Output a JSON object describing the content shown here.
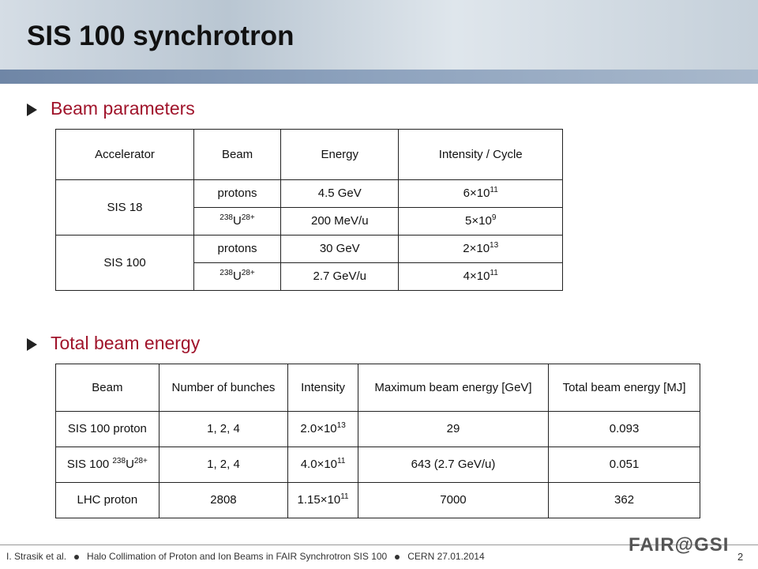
{
  "header": {
    "title": "SIS 100 synchrotron"
  },
  "sections": [
    {
      "heading": "Beam parameters",
      "table": {
        "header": [
          "Accelerator",
          "Beam",
          "Energy",
          "Intensity / Cycle"
        ],
        "groups": [
          {
            "accelerator": "SIS 18",
            "rows": [
              [
                "protons",
                "4.5 GeV",
                [
                  {
                    "text": "6×10"
                  },
                  {
                    "text": "11",
                    "sup": true
                  }
                ]
              ],
              [
                [
                  {
                    "text": "238",
                    "sup": true
                  },
                  {
                    "text": "U"
                  },
                  {
                    "text": "28+",
                    "sup": true
                  }
                ],
                "200 MeV/u",
                [
                  {
                    "text": "5×10"
                  },
                  {
                    "text": "9",
                    "sup": true
                  }
                ]
              ]
            ]
          },
          {
            "accelerator": "SIS 100",
            "rows": [
              [
                "protons",
                "30 GeV",
                [
                  {
                    "text": "2×10"
                  },
                  {
                    "text": "13",
                    "sup": true
                  }
                ]
              ],
              [
                [
                  {
                    "text": "238",
                    "sup": true
                  },
                  {
                    "text": "U"
                  },
                  {
                    "text": "28+",
                    "sup": true
                  }
                ],
                "2.7 GeV/u",
                [
                  {
                    "text": "4×10"
                  },
                  {
                    "text": "11",
                    "sup": true
                  }
                ]
              ]
            ]
          }
        ]
      }
    },
    {
      "heading": "Total beam energy",
      "table": {
        "header": [
          "Beam",
          "Number of bunches",
          "Intensity",
          "Maximum beam energy [GeV]",
          "Total beam energy [MJ]"
        ],
        "rows": [
          [
            "SIS 100 proton",
            "1, 2, 4",
            [
              {
                "text": "2.0×10"
              },
              {
                "text": "13",
                "sup": true
              }
            ],
            "29",
            "0.093"
          ],
          [
            [
              {
                "text": "SIS 100 "
              },
              {
                "text": "238",
                "sup": true
              },
              {
                "text": "U"
              },
              {
                "text": "28+",
                "sup": true
              }
            ],
            "1, 2, 4",
            [
              {
                "text": "4.0×10"
              },
              {
                "text": "11",
                "sup": true
              }
            ],
            "643 (2.7 GeV/u)",
            "0.051"
          ],
          [
            "LHC proton",
            "2808",
            [
              {
                "text": "1.15×10"
              },
              {
                "text": "11",
                "sup": true
              }
            ],
            "7000",
            "362"
          ]
        ]
      }
    }
  ],
  "footer": {
    "author": "I. Strasik et al.",
    "talk": "Halo Collimation of Proton and Ion Beams in FAIR Synchrotron SIS 100",
    "venue": "CERN 27.01.2014",
    "page": "2",
    "logo": "FAIR@GSI"
  }
}
